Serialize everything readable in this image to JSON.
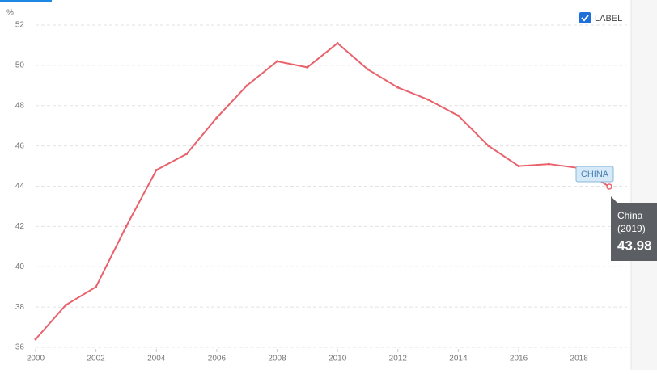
{
  "chart_data": {
    "type": "line",
    "unit": "%",
    "label_toggle": "LABEL",
    "series_label": "CHINA",
    "x": [
      2000,
      2001,
      2002,
      2003,
      2004,
      2005,
      2006,
      2007,
      2008,
      2009,
      2010,
      2011,
      2012,
      2013,
      2014,
      2015,
      2016,
      2017,
      2018,
      2019
    ],
    "series": [
      {
        "name": "China",
        "color": "#e8616b",
        "values": [
          36.4,
          38.1,
          39.0,
          42.0,
          44.8,
          45.6,
          47.4,
          49.0,
          50.2,
          49.9,
          51.1,
          49.8,
          48.9,
          48.3,
          47.5,
          46.0,
          45.0,
          45.1,
          44.9,
          43.98
        ]
      }
    ],
    "xlim": [
      2000,
      2019
    ],
    "xticks": [
      2000,
      2002,
      2004,
      2006,
      2008,
      2010,
      2012,
      2014,
      2016,
      2018
    ],
    "ylim": [
      36,
      52
    ],
    "yticks": [
      36,
      38,
      40,
      42,
      44,
      46,
      48,
      50,
      52
    ],
    "grid": true,
    "tooltip": {
      "period": "(2019)"
    }
  }
}
